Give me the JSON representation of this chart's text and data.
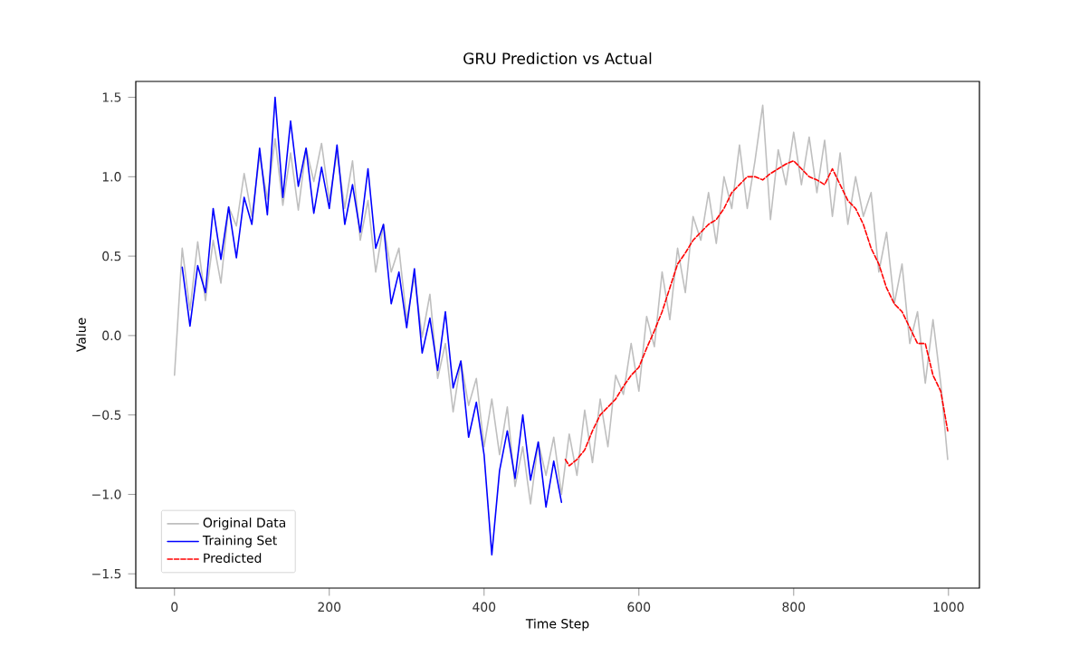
{
  "chart_data": {
    "type": "line",
    "title": "GRU Prediction vs Actual",
    "xlabel": "Time Step",
    "ylabel": "Value",
    "xlim": [
      -50,
      1040
    ],
    "ylim": [
      -1.59,
      1.6
    ],
    "xticks": [
      0,
      200,
      400,
      600,
      800,
      1000
    ],
    "yticks": [
      {
        "value": -1.5,
        "label": "−1.5"
      },
      {
        "value": -1.0,
        "label": "−1.0"
      },
      {
        "value": -0.5,
        "label": "−0.5"
      },
      {
        "value": 0.0,
        "label": "0.0"
      },
      {
        "value": 0.5,
        "label": "0.5"
      },
      {
        "value": 1.0,
        "label": "1.0"
      },
      {
        "value": 1.5,
        "label": "1.5"
      }
    ],
    "legend": "bottom left",
    "marker": "none",
    "series": [
      {
        "name": "Original Data",
        "color": "#bfbfbf",
        "line_style": "solid",
        "x": [
          0,
          10,
          20,
          30,
          40,
          50,
          60,
          70,
          80,
          90,
          100,
          110,
          120,
          130,
          140,
          150,
          160,
          170,
          180,
          190,
          200,
          210,
          220,
          230,
          240,
          250,
          260,
          270,
          280,
          290,
          300,
          310,
          320,
          330,
          340,
          350,
          360,
          370,
          380,
          390,
          400,
          410,
          420,
          430,
          440,
          450,
          460,
          470,
          480,
          490,
          500,
          510,
          520,
          530,
          540,
          550,
          560,
          570,
          580,
          590,
          600,
          610,
          620,
          630,
          640,
          650,
          660,
          670,
          680,
          690,
          700,
          710,
          720,
          730,
          740,
          750,
          760,
          770,
          780,
          790,
          800,
          810,
          820,
          830,
          840,
          850,
          860,
          870,
          880,
          890,
          900,
          910,
          920,
          930,
          940,
          950,
          960,
          970,
          980,
          990,
          999
        ],
        "values": [
          -0.25,
          0.55,
          0.16,
          0.59,
          0.22,
          0.6,
          0.33,
          0.81,
          0.69,
          1.02,
          0.75,
          1.13,
          0.86,
          1.24,
          0.82,
          1.15,
          0.79,
          1.18,
          0.97,
          1.21,
          0.85,
          1.15,
          0.8,
          1.1,
          0.6,
          0.85,
          0.4,
          0.7,
          0.4,
          0.55,
          0.1,
          0.37,
          -0.01,
          0.26,
          -0.27,
          -0.05,
          -0.48,
          -0.16,
          -0.44,
          -0.27,
          -0.7,
          -0.4,
          -0.75,
          -0.45,
          -0.95,
          -0.7,
          -1.06,
          -0.67,
          -0.88,
          -0.64,
          -1.0,
          -0.62,
          -0.88,
          -0.47,
          -0.8,
          -0.4,
          -0.7,
          -0.25,
          -0.37,
          -0.05,
          -0.35,
          0.12,
          -0.07,
          0.4,
          0.1,
          0.55,
          0.27,
          0.75,
          0.6,
          0.9,
          0.58,
          1.0,
          0.8,
          1.2,
          0.8,
          1.1,
          1.45,
          0.73,
          1.17,
          0.95,
          1.28,
          0.95,
          1.25,
          0.9,
          1.23,
          0.75,
          1.15,
          0.7,
          1.0,
          0.75,
          0.9,
          0.4,
          0.65,
          0.2,
          0.45,
          -0.05,
          0.15,
          -0.3,
          0.1,
          -0.3,
          -0.78
        ]
      },
      {
        "name": "Training Set",
        "color": "#0000ff",
        "line_style": "solid",
        "x": [
          10,
          20,
          30,
          40,
          50,
          60,
          70,
          80,
          90,
          100,
          110,
          120,
          130,
          140,
          150,
          160,
          170,
          180,
          190,
          200,
          210,
          220,
          230,
          240,
          250,
          260,
          270,
          280,
          290,
          300,
          310,
          320,
          330,
          340,
          350,
          360,
          370,
          380,
          390,
          400,
          410,
          420,
          430,
          440,
          450,
          460,
          470,
          480,
          490,
          500
        ],
        "values": [
          0.43,
          0.06,
          0.44,
          0.27,
          0.8,
          0.48,
          0.81,
          0.49,
          0.87,
          0.7,
          1.18,
          0.76,
          1.5,
          0.87,
          1.35,
          0.94,
          1.18,
          0.77,
          1.06,
          0.8,
          1.2,
          0.7,
          0.95,
          0.65,
          1.05,
          0.55,
          0.7,
          0.2,
          0.4,
          0.05,
          0.42,
          -0.11,
          0.11,
          -0.22,
          0.15,
          -0.33,
          -0.16,
          -0.64,
          -0.42,
          -0.75,
          -1.38,
          -0.85,
          -0.6,
          -0.9,
          -0.5,
          -0.91,
          -0.67,
          -1.08,
          -0.79,
          -1.05
        ]
      },
      {
        "name": "Predicted",
        "color": "#ff0000",
        "line_style": "dashed",
        "x": [
          505,
          510,
          520,
          530,
          540,
          550,
          560,
          570,
          580,
          590,
          600,
          610,
          620,
          630,
          640,
          650,
          660,
          670,
          680,
          690,
          700,
          710,
          720,
          730,
          740,
          750,
          760,
          770,
          780,
          790,
          800,
          810,
          820,
          830,
          840,
          850,
          860,
          870,
          880,
          890,
          900,
          910,
          920,
          930,
          940,
          950,
          960,
          970,
          980,
          990,
          999
        ],
        "values": [
          -0.78,
          -0.82,
          -0.78,
          -0.72,
          -0.6,
          -0.5,
          -0.45,
          -0.4,
          -0.32,
          -0.25,
          -0.2,
          -0.08,
          0.03,
          0.15,
          0.3,
          0.45,
          0.52,
          0.6,
          0.65,
          0.7,
          0.73,
          0.8,
          0.9,
          0.95,
          1.0,
          1.0,
          0.98,
          1.02,
          1.05,
          1.08,
          1.1,
          1.05,
          1.0,
          0.98,
          0.95,
          1.05,
          0.95,
          0.85,
          0.8,
          0.7,
          0.55,
          0.45,
          0.3,
          0.2,
          0.15,
          0.05,
          -0.05,
          -0.05,
          -0.25,
          -0.35,
          -0.6
        ]
      }
    ]
  }
}
